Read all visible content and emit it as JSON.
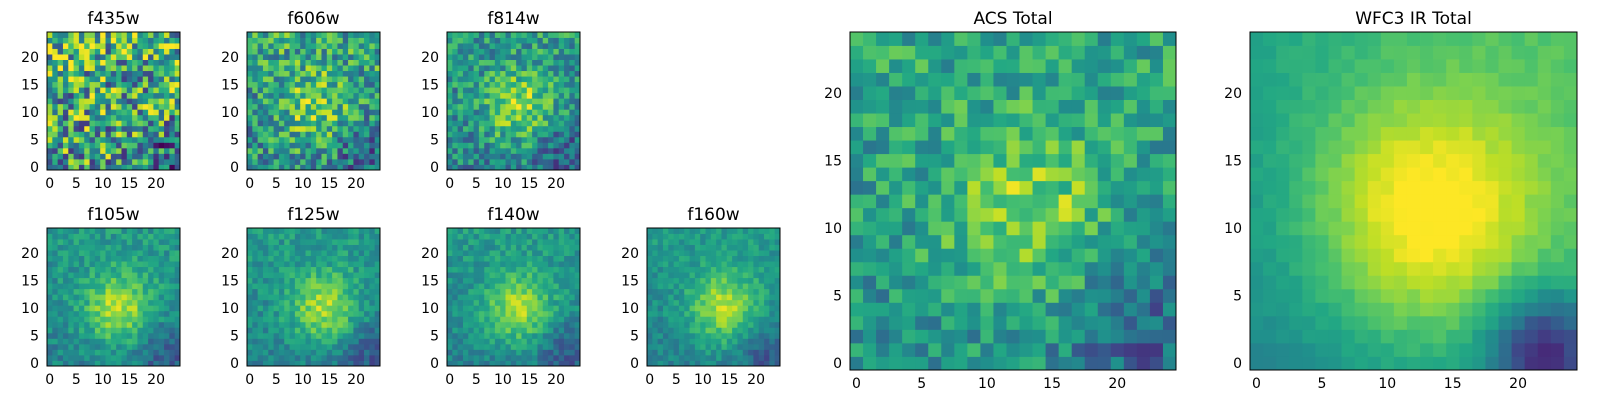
{
  "chart_data": [
    {
      "type": "heatmap",
      "title": "f435w",
      "colormap": "viridis",
      "grid_size": 25,
      "xlim": [
        0,
        25
      ],
      "ylim": [
        0,
        25
      ],
      "xticks": [
        0,
        5,
        10,
        15,
        20
      ],
      "yticks": [
        0,
        5,
        10,
        15,
        20
      ],
      "pattern": "noise",
      "peak": [
        12,
        11
      ],
      "peak_strength": 0.0,
      "noise": 0.42,
      "base": 0.55,
      "seed": 11
    },
    {
      "type": "heatmap",
      "title": "f606w",
      "colormap": "viridis",
      "grid_size": 25,
      "xlim": [
        0,
        25
      ],
      "ylim": [
        0,
        25
      ],
      "xticks": [
        0,
        5,
        10,
        15,
        20
      ],
      "yticks": [
        0,
        5,
        10,
        15,
        20
      ],
      "pattern": "faint_peak",
      "peak": [
        12,
        11
      ],
      "peak_strength": 0.25,
      "noise": 0.28,
      "base": 0.5,
      "seed": 23
    },
    {
      "type": "heatmap",
      "title": "f814w",
      "colormap": "viridis",
      "grid_size": 25,
      "xlim": [
        0,
        25
      ],
      "ylim": [
        0,
        25
      ],
      "xticks": [
        0,
        5,
        10,
        15,
        20
      ],
      "yticks": [
        0,
        5,
        10,
        15,
        20
      ],
      "pattern": "peak",
      "peak": [
        13,
        11
      ],
      "peak_strength": 0.35,
      "noise": 0.22,
      "base": 0.45,
      "seed": 37
    },
    {
      "type": "heatmap",
      "title": "f105w",
      "colormap": "viridis",
      "grid_size": 25,
      "xlim": [
        0,
        25
      ],
      "ylim": [
        0,
        25
      ],
      "xticks": [
        0,
        5,
        10,
        15,
        20
      ],
      "yticks": [
        0,
        5,
        10,
        15,
        20
      ],
      "pattern": "peak",
      "peak": [
        13,
        10
      ],
      "peak_strength": 0.4,
      "noise": 0.12,
      "base": 0.45,
      "seed": 41
    },
    {
      "type": "heatmap",
      "title": "f125w",
      "colormap": "viridis",
      "grid_size": 25,
      "xlim": [
        0,
        25
      ],
      "ylim": [
        0,
        25
      ],
      "xticks": [
        0,
        5,
        10,
        15,
        20
      ],
      "yticks": [
        0,
        5,
        10,
        15,
        20
      ],
      "pattern": "peak",
      "peak": [
        14,
        10
      ],
      "peak_strength": 0.38,
      "noise": 0.12,
      "base": 0.45,
      "seed": 53
    },
    {
      "type": "heatmap",
      "title": "f140w",
      "colormap": "viridis",
      "grid_size": 25,
      "xlim": [
        0,
        25
      ],
      "ylim": [
        0,
        25
      ],
      "xticks": [
        0,
        5,
        10,
        15,
        20
      ],
      "yticks": [
        0,
        5,
        10,
        15,
        20
      ],
      "pattern": "peak",
      "peak": [
        13,
        10
      ],
      "peak_strength": 0.38,
      "noise": 0.11,
      "base": 0.45,
      "seed": 67
    },
    {
      "type": "heatmap",
      "title": "f160w",
      "colormap": "viridis",
      "grid_size": 25,
      "xlim": [
        0,
        25
      ],
      "ylim": [
        0,
        25
      ],
      "xticks": [
        0,
        5,
        10,
        15,
        20
      ],
      "yticks": [
        0,
        5,
        10,
        15,
        20
      ],
      "pattern": "peak",
      "peak": [
        14,
        10
      ],
      "peak_strength": 0.4,
      "noise": 0.1,
      "base": 0.45,
      "seed": 79
    },
    {
      "type": "heatmap",
      "title": "ACS Total",
      "colormap": "viridis",
      "grid_size": 25,
      "xlim": [
        0,
        25
      ],
      "ylim": [
        0,
        25
      ],
      "xticks": [
        0,
        5,
        10,
        15,
        20
      ],
      "yticks": [
        0,
        5,
        10,
        15,
        20
      ],
      "pattern": "peak",
      "peak": [
        13,
        11
      ],
      "peak_strength": 0.3,
      "noise": 0.18,
      "base": 0.5,
      "seed": 83
    },
    {
      "type": "heatmap",
      "title": "WFC3 IR Total",
      "colormap": "viridis",
      "grid_size": 25,
      "xlim": [
        0,
        25
      ],
      "ylim": [
        0,
        25
      ],
      "xticks": [
        0,
        5,
        10,
        15,
        20
      ],
      "yticks": [
        0,
        5,
        10,
        15,
        20
      ],
      "pattern": "smooth_peak",
      "peak": [
        13,
        11
      ],
      "peak_strength": 0.45,
      "noise": 0.03,
      "base": 0.45,
      "seed": 97
    }
  ]
}
